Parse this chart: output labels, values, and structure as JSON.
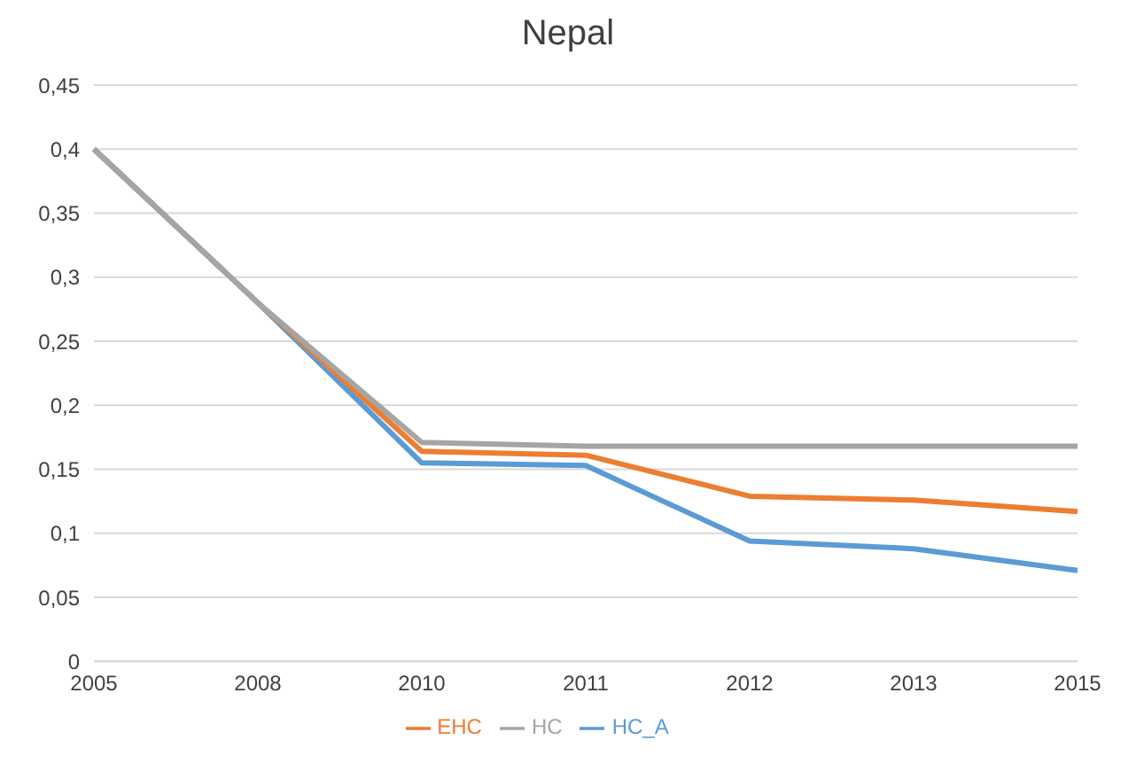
{
  "chart_data": {
    "type": "line",
    "title": "Nepal",
    "categories": [
      "2005",
      "2008",
      "2010",
      "2011",
      "2012",
      "2013",
      "2015"
    ],
    "series": [
      {
        "name": "HC_A",
        "color": "#5b9bd5",
        "values": [
          0.4,
          0.28,
          0.155,
          0.153,
          0.094,
          0.088,
          0.071
        ]
      },
      {
        "name": "EHC",
        "color": "#ed7d31",
        "values": [
          0.4,
          0.28,
          0.164,
          0.161,
          0.129,
          0.126,
          0.117
        ]
      },
      {
        "name": "HC",
        "color": "#a5a5a5",
        "values": [
          0.4,
          0.28,
          0.171,
          0.168,
          0.168,
          0.168,
          0.168
        ]
      }
    ],
    "ylim": [
      0,
      0.45
    ],
    "yticks": [
      {
        "value": 0,
        "label": "0"
      },
      {
        "value": 0.05,
        "label": "0,05"
      },
      {
        "value": 0.1,
        "label": "0,1"
      },
      {
        "value": 0.15,
        "label": "0,15"
      },
      {
        "value": 0.2,
        "label": "0,2"
      },
      {
        "value": 0.25,
        "label": "0,25"
      },
      {
        "value": 0.3,
        "label": "0,3"
      },
      {
        "value": 0.35,
        "label": "0,35"
      },
      {
        "value": 0.4,
        "label": "0,4"
      },
      {
        "value": 0.45,
        "label": "0,45"
      }
    ],
    "grid": "y",
    "legend": "bottom",
    "marker": "none",
    "line_style": "solid"
  }
}
